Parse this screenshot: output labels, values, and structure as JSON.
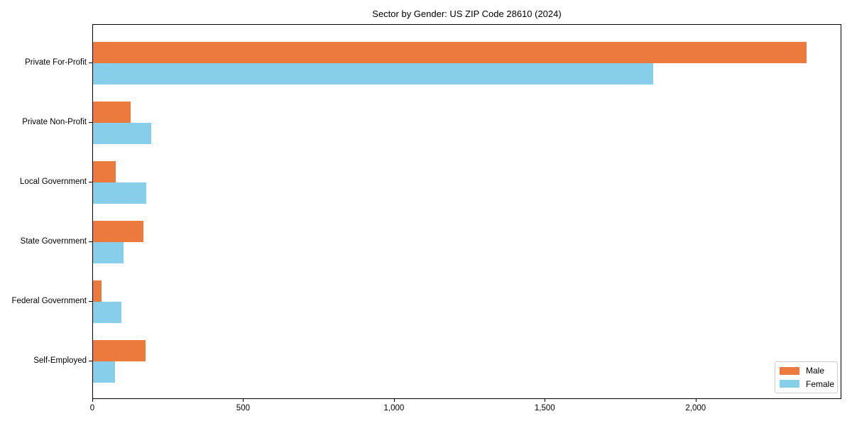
{
  "title": "Sector by Gender: US ZIP Code 28610 (2024)",
  "colors": {
    "male": "#EC7A3C",
    "female": "#87CEEB",
    "axis": "#000000",
    "legend_border": "#CCCCCC",
    "background": "#FFFFFF"
  },
  "chart_data": {
    "type": "bar",
    "orientation": "horizontal",
    "title": "Sector by Gender: US ZIP Code 28610 (2024)",
    "categories": [
      "Private For-Profit",
      "Private Non-Profit",
      "Local Government",
      "State Government",
      "Federal Government",
      "Self-Employed"
    ],
    "series": [
      {
        "name": "Male",
        "color": "#EC7A3C",
        "values": [
          2365,
          125,
          76,
          166,
          27,
          173
        ]
      },
      {
        "name": "Female",
        "color": "#87CEEB",
        "values": [
          1856,
          193,
          177,
          100,
          93,
          74
        ]
      }
    ],
    "xlabel": "",
    "ylabel": "",
    "xlim": [
      0,
      2483
    ],
    "x_ticks": [
      0,
      500,
      1000,
      1500,
      2000
    ],
    "x_tick_labels": [
      "0",
      "500",
      "1,000",
      "1,500",
      "2,000"
    ],
    "grid": false,
    "legend": {
      "position": "lower right",
      "entries": [
        "Male",
        "Female"
      ]
    }
  }
}
